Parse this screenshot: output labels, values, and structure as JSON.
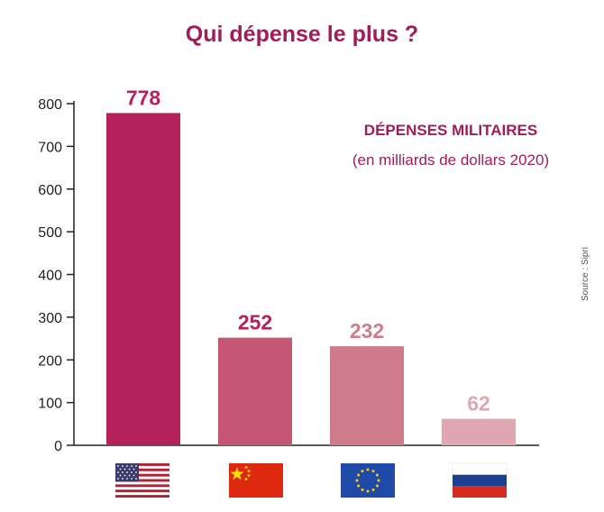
{
  "chart_data": {
    "type": "bar",
    "title": "Qui dépense le plus ?",
    "annotation": {
      "heading": "DÉPENSES MILITAIRES",
      "subheading": "(en milliards de dollars 2020)"
    },
    "source": "Source : Sipri",
    "categories": [
      "États-Unis",
      "Chine",
      "Union européenne",
      "Russie"
    ],
    "category_icons": [
      "flag-usa-icon",
      "flag-china-icon",
      "flag-eu-icon",
      "flag-russia-icon"
    ],
    "values": [
      778,
      252,
      232,
      62
    ],
    "value_labels": [
      "778",
      "252",
      "232",
      "62"
    ],
    "bar_colors": [
      "#b5215b",
      "#c55774",
      "#d07b8c",
      "#dea7b1"
    ],
    "label_colors": [
      "#b5215b",
      "#b5215b",
      "#d07b8c",
      "#dea7b1"
    ],
    "ylim": [
      0,
      800
    ],
    "yticks": [
      0,
      100,
      200,
      300,
      400,
      500,
      600,
      700,
      800
    ],
    "grid": false,
    "xlabel": "",
    "ylabel": ""
  }
}
